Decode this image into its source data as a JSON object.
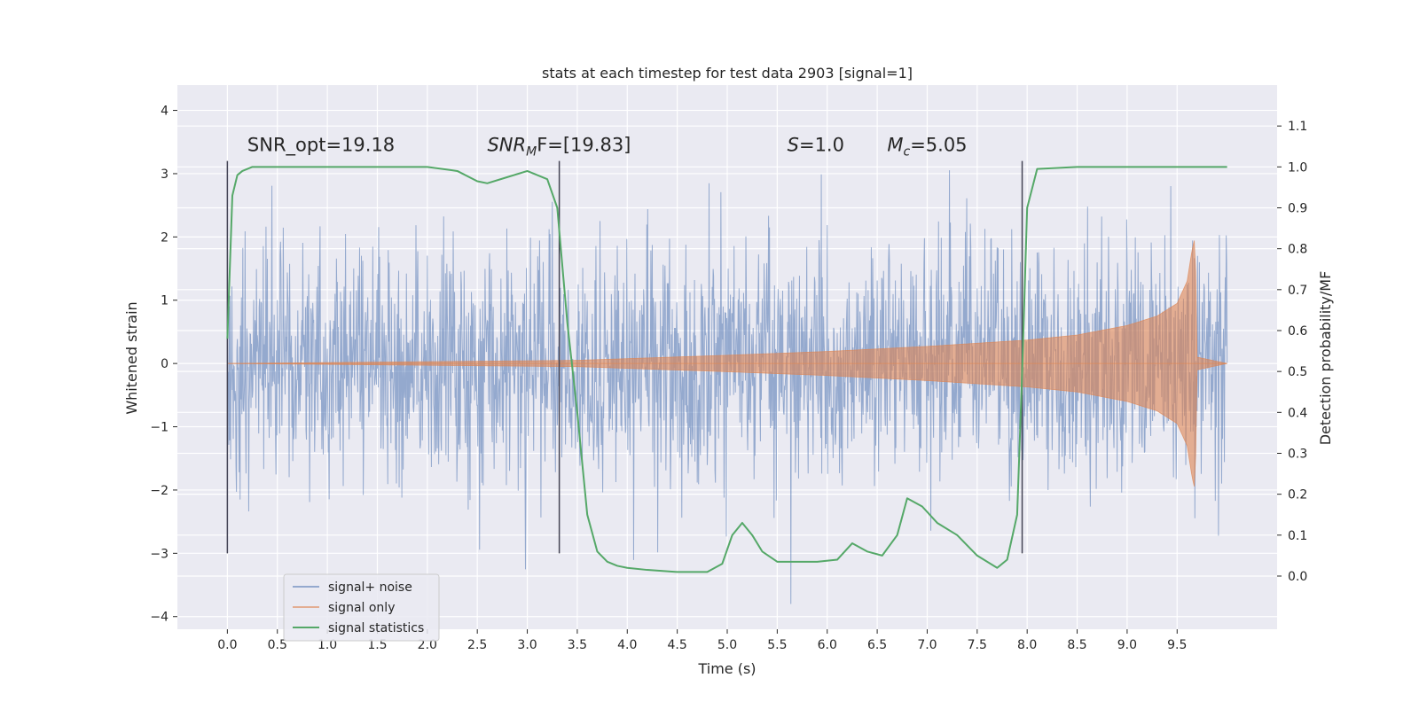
{
  "chart_data": {
    "type": "line",
    "title": "stats at each timestep for test data 2903 [signal=1]",
    "xlabel": "Time (s)",
    "ylabel": "Whitened strain",
    "y2label": "Detection probability/MF",
    "xlim": [
      -0.5,
      10.5
    ],
    "ylim": [
      -4.2,
      4.4
    ],
    "y2lim": [
      -0.13,
      1.2
    ],
    "xticks": [
      0.0,
      0.5,
      1.0,
      1.5,
      2.0,
      2.5,
      3.0,
      3.5,
      4.0,
      4.5,
      5.0,
      5.5,
      6.0,
      6.5,
      7.0,
      7.5,
      8.0,
      8.5,
      9.0,
      9.5
    ],
    "yticks": [
      -4,
      -3,
      -2,
      -1,
      0,
      1,
      2,
      3,
      4
    ],
    "y2ticks": [
      0.0,
      0.1,
      0.2,
      0.3,
      0.4,
      0.5,
      0.6,
      0.7,
      0.8,
      0.9,
      1.0,
      1.1
    ],
    "grid": true,
    "legend_position": "lower-left",
    "annotations": [
      {
        "x": 0.2,
        "y": 3.3,
        "text": "SNR_opt=19.18"
      },
      {
        "x": 2.6,
        "y": 3.3,
        "text": "SNR",
        "sub": "M",
        "tail": "F=[19.83]",
        "italic": true
      },
      {
        "x": 5.6,
        "y": 3.3,
        "text": "S",
        "tail": "=1.0",
        "italic": true
      },
      {
        "x": 6.6,
        "y": 3.3,
        "text": "M",
        "sub": "c",
        "tail": "=5.05",
        "italic": true
      }
    ],
    "vertical_lines": [
      {
        "x": 0.0,
        "y_range": [
          -3.0,
          3.2
        ]
      },
      {
        "x": 3.32,
        "y_range": [
          -3.0,
          3.2
        ]
      },
      {
        "x": 7.95,
        "y_range": [
          -3.0,
          3.2
        ]
      }
    ],
    "series": [
      {
        "name": "signal+ noise",
        "color": "#4C72B0",
        "axis": "left",
        "style": "dense noise, envelope about ±1.35 with spikes to about ±4",
        "x_range": [
          0.0,
          10.0
        ],
        "spike_envelope": [
          4.0,
          -3.8
        ]
      },
      {
        "name": "signal only",
        "color": "#DD8452",
        "axis": "left",
        "style": "chirp, amplitude growing until merger then ringdown",
        "x": [
          0.0,
          3.5,
          5.0,
          6.0,
          7.0,
          8.0,
          8.5,
          9.0,
          9.3,
          9.5,
          9.6,
          9.65,
          9.68,
          9.7,
          10.0
        ],
        "amplitude": [
          0.0,
          0.05,
          0.13,
          0.19,
          0.27,
          0.37,
          0.45,
          0.6,
          0.75,
          0.95,
          1.3,
          1.8,
          2.0,
          0.1,
          0.0
        ]
      },
      {
        "name": "signal statistics",
        "color": "#55A868",
        "axis": "right",
        "x": [
          0.0,
          0.05,
          0.1,
          0.15,
          0.25,
          0.5,
          1.0,
          1.5,
          2.0,
          2.3,
          2.5,
          2.6,
          2.8,
          3.0,
          3.2,
          3.3,
          3.4,
          3.5,
          3.6,
          3.7,
          3.8,
          3.9,
          4.0,
          4.2,
          4.5,
          4.8,
          4.95,
          5.05,
          5.15,
          5.25,
          5.35,
          5.5,
          5.7,
          5.9,
          6.1,
          6.25,
          6.4,
          6.55,
          6.7,
          6.8,
          6.95,
          7.1,
          7.3,
          7.5,
          7.7,
          7.8,
          7.9,
          7.95,
          8.0,
          8.1,
          8.5,
          9.0,
          9.5,
          10.0
        ],
        "values": [
          0.58,
          0.93,
          0.98,
          0.99,
          1.0,
          1.0,
          1.0,
          1.0,
          1.0,
          0.99,
          0.965,
          0.96,
          0.975,
          0.99,
          0.97,
          0.9,
          0.62,
          0.4,
          0.15,
          0.06,
          0.035,
          0.025,
          0.02,
          0.015,
          0.01,
          0.01,
          0.03,
          0.1,
          0.13,
          0.1,
          0.06,
          0.035,
          0.035,
          0.035,
          0.04,
          0.08,
          0.06,
          0.05,
          0.1,
          0.19,
          0.17,
          0.13,
          0.1,
          0.05,
          0.02,
          0.04,
          0.15,
          0.5,
          0.9,
          0.995,
          1.0,
          1.0,
          1.0,
          1.0
        ]
      }
    ]
  }
}
